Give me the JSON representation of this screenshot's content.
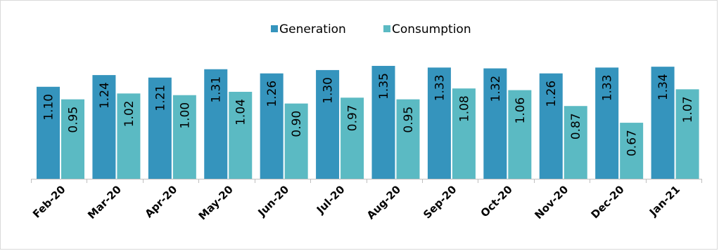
{
  "chart_data": {
    "type": "bar",
    "title": "",
    "xlabel": "",
    "ylabel": "",
    "categories": [
      "Feb-20",
      "Mar-20",
      "Apr-20",
      "May-20",
      "Jun-20",
      "Jul-20",
      "Aug-20",
      "Sep-20",
      "Oct-20",
      "Nov-20",
      "Dec-20",
      "Jan-21"
    ],
    "series": [
      {
        "name": "Generation",
        "color": "#3594bd",
        "values": [
          1.1,
          1.24,
          1.21,
          1.31,
          1.26,
          1.3,
          1.35,
          1.33,
          1.32,
          1.26,
          1.33,
          1.34
        ]
      },
      {
        "name": "Consumption",
        "color": "#5bbac3",
        "values": [
          0.95,
          1.02,
          1.0,
          1.04,
          0.9,
          0.97,
          0.95,
          1.08,
          1.06,
          0.87,
          0.67,
          1.07
        ]
      }
    ],
    "ylim": [
      0,
      1.4
    ],
    "grid": false,
    "legend_position": "top-center",
    "data_labels": true,
    "data_label_decimals": 2,
    "axis_color": "#bfbfbf"
  }
}
